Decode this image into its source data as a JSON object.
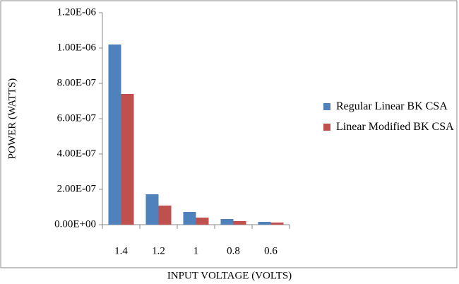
{
  "chart_data": {
    "type": "bar",
    "xlabel": "INPUT VOLTAGE (VOLTS)",
    "ylabel": "POWER (WATTS)",
    "categories": [
      "1.4",
      "1.2",
      "1",
      "0.8",
      "0.6"
    ],
    "series": [
      {
        "name": "Regular Linear BK CSA",
        "color": "#4f81bd",
        "values": [
          1.02e-06,
          1.72e-07,
          7.2e-08,
          3.2e-08,
          1.6e-08
        ]
      },
      {
        "name": "Linear Modified BK CSA",
        "color": "#c0504d",
        "values": [
          7.4e-07,
          1.08e-07,
          4e-08,
          2e-08,
          1.2e-08
        ]
      }
    ],
    "ylim": [
      0,
      1.2e-06
    ],
    "yticks": [
      {
        "value": 0,
        "label": "0.00E+00"
      },
      {
        "value": 2e-07,
        "label": "2.00E-07"
      },
      {
        "value": 4e-07,
        "label": "4.00E-07"
      },
      {
        "value": 6e-07,
        "label": "6.00E-07"
      },
      {
        "value": 8e-07,
        "label": "8.00E-07"
      },
      {
        "value": 1e-06,
        "label": "1.00E-06"
      },
      {
        "value": 1.2e-06,
        "label": "1.20E-06"
      }
    ],
    "legend": "right"
  }
}
